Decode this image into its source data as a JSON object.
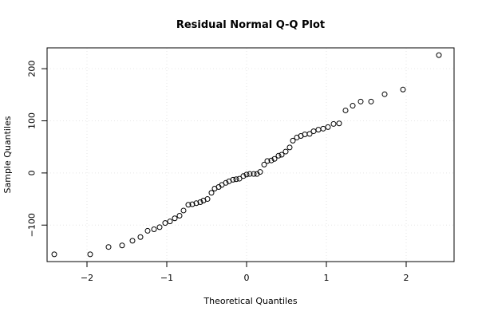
{
  "chart_data": {
    "type": "scatter",
    "title": "Residual Normal Q-Q Plot",
    "xlabel": "Theoretical Quantiles",
    "ylabel": "Sample Quantiles",
    "xlim": [
      -2.5,
      2.6
    ],
    "ylim": [
      -170,
      240
    ],
    "xticks": [
      -2,
      -1,
      0,
      1,
      2
    ],
    "xtick_labels": [
      "−2",
      "−1",
      "0",
      "1",
      "2"
    ],
    "yticks": [
      -100,
      0,
      100,
      200
    ],
    "ytick_labels": [
      "−100",
      "0",
      "100",
      "200"
    ],
    "grid": true,
    "points": [
      [
        -2.41,
        -156
      ],
      [
        -1.96,
        -156
      ],
      [
        -1.73,
        -142
      ],
      [
        -1.56,
        -139
      ],
      [
        -1.43,
        -130
      ],
      [
        -1.33,
        -123
      ],
      [
        -1.24,
        -111
      ],
      [
        -1.16,
        -108
      ],
      [
        -1.09,
        -104
      ],
      [
        -1.02,
        -96
      ],
      [
        -0.96,
        -93
      ],
      [
        -0.9,
        -87
      ],
      [
        -0.84,
        -82
      ],
      [
        -0.79,
        -72
      ],
      [
        -0.73,
        -61
      ],
      [
        -0.68,
        -60
      ],
      [
        -0.63,
        -58
      ],
      [
        -0.58,
        -56
      ],
      [
        -0.54,
        -53
      ],
      [
        -0.49,
        -50
      ],
      [
        -0.44,
        -38
      ],
      [
        -0.4,
        -30
      ],
      [
        -0.35,
        -27
      ],
      [
        -0.31,
        -23
      ],
      [
        -0.26,
        -19
      ],
      [
        -0.22,
        -16
      ],
      [
        -0.17,
        -13
      ],
      [
        -0.13,
        -12
      ],
      [
        -0.09,
        -11
      ],
      [
        -0.04,
        -6
      ],
      [
        0.0,
        -3
      ],
      [
        0.04,
        -2
      ],
      [
        0.09,
        -2
      ],
      [
        0.13,
        -2
      ],
      [
        0.17,
        2
      ],
      [
        0.22,
        16
      ],
      [
        0.26,
        23
      ],
      [
        0.31,
        24
      ],
      [
        0.35,
        27
      ],
      [
        0.4,
        33
      ],
      [
        0.44,
        35
      ],
      [
        0.49,
        41
      ],
      [
        0.54,
        49
      ],
      [
        0.58,
        62
      ],
      [
        0.63,
        68
      ],
      [
        0.68,
        71
      ],
      [
        0.73,
        74
      ],
      [
        0.79,
        75
      ],
      [
        0.84,
        80
      ],
      [
        0.9,
        83
      ],
      [
        0.96,
        85
      ],
      [
        1.02,
        88
      ],
      [
        1.09,
        94
      ],
      [
        1.16,
        95
      ],
      [
        1.24,
        120
      ],
      [
        1.33,
        129
      ],
      [
        1.43,
        137
      ],
      [
        1.56,
        137
      ],
      [
        1.73,
        151
      ],
      [
        1.96,
        160
      ],
      [
        2.41,
        226
      ]
    ]
  }
}
